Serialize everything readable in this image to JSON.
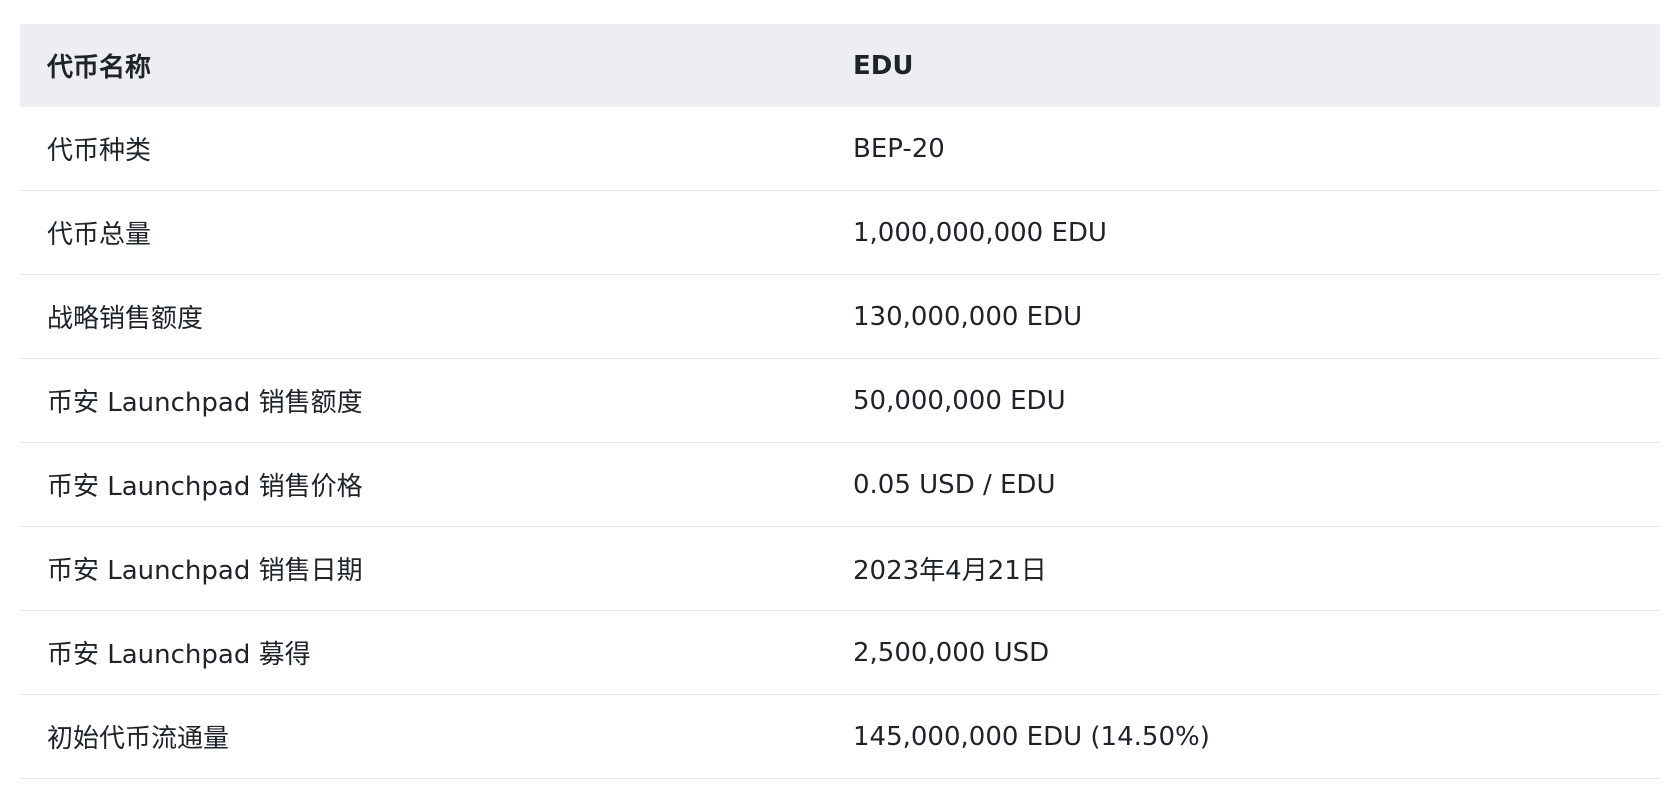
{
  "table": {
    "header": {
      "label": "代币名称",
      "value": "EDU"
    },
    "rows": [
      {
        "label": "代币种类",
        "value": "BEP-20"
      },
      {
        "label": "代币总量",
        "value": "1,000,000,000 EDU"
      },
      {
        "label": "战略销售额度",
        "value": "130,000,000 EDU"
      },
      {
        "label": "币安 Launchpad 销售额度",
        "value": "50,000,000 EDU"
      },
      {
        "label": "币安 Launchpad 销售价格",
        "value": "0.05 USD / EDU"
      },
      {
        "label": "币安 Launchpad 销售日期",
        "value": "2023年4月21日"
      },
      {
        "label": "币安 Launchpad 募得",
        "value": "2,500,000 USD"
      },
      {
        "label": "初始代币流通量",
        "value": "145,000,000 EDU (14.50%)"
      }
    ]
  }
}
